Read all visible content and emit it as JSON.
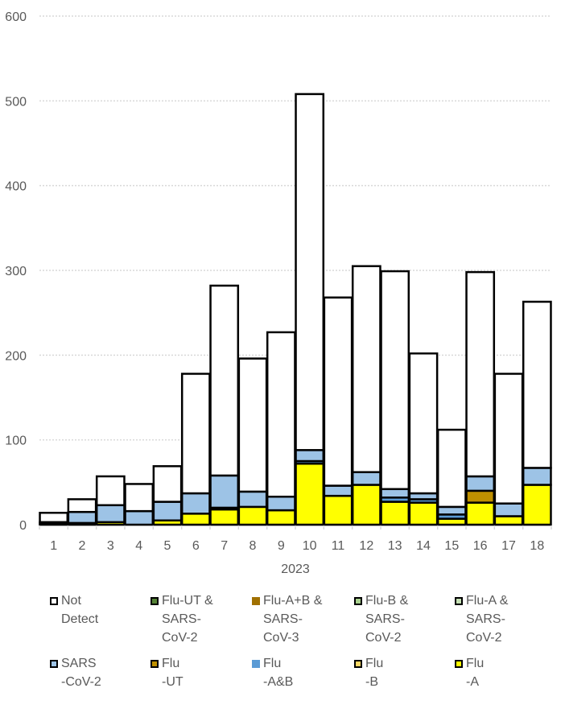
{
  "chart_data": {
    "type": "bar",
    "stacked": true,
    "title": "",
    "xlabel": "2023",
    "ylabel": "",
    "ylim": [
      0,
      600
    ],
    "yticks": [
      0,
      100,
      200,
      300,
      400,
      500,
      600
    ],
    "grid": "horizontal-dotted",
    "legend_position": "bottom",
    "categories": [
      "1",
      "2",
      "3",
      "4",
      "5",
      "6",
      "7",
      "8",
      "9",
      "10",
      "11",
      "12",
      "13",
      "14",
      "15",
      "16",
      "17",
      "18"
    ],
    "series": [
      {
        "name": "Flu-A",
        "label": "Flu\n-A",
        "color": "#FFFF00",
        "values": [
          1,
          2,
          3,
          0,
          5,
          13,
          18,
          21,
          17,
          72,
          34,
          47,
          27,
          26,
          7,
          26,
          10,
          47
        ]
      },
      {
        "name": "Flu-B",
        "label": "Flu\n-B",
        "color": "#FFD966",
        "values": [
          0,
          0,
          0,
          0,
          0,
          0,
          0,
          0,
          0,
          0,
          0,
          0,
          0,
          0,
          0,
          0,
          0,
          0
        ]
      },
      {
        "name": "Flu-A&B",
        "label": "Flu\n-A&B",
        "color": "#5B9BD5",
        "values": [
          0,
          0,
          0,
          0,
          0,
          0,
          0,
          0,
          0,
          3,
          0,
          0,
          5,
          4,
          5,
          0,
          0,
          0
        ]
      },
      {
        "name": "Flu-UT",
        "label": "Flu\n-UT",
        "color": "#BF9000",
        "values": [
          0,
          0,
          0,
          0,
          0,
          0,
          2,
          0,
          0,
          0,
          0,
          0,
          0,
          0,
          0,
          14,
          0,
          0
        ]
      },
      {
        "name": "SARS-CoV-2",
        "label": "SARS\n-CoV-2",
        "color": "#9DC3E6",
        "values": [
          2,
          13,
          20,
          16,
          22,
          24,
          38,
          18,
          16,
          13,
          12,
          15,
          10,
          7,
          9,
          17,
          15,
          20
        ]
      },
      {
        "name": "Flu-A & SARS-CoV-2",
        "label": "Flu-A &\nSARS-\nCoV-2",
        "color": "#C5E0B4",
        "values": [
          0,
          0,
          0,
          0,
          0,
          0,
          0,
          0,
          0,
          0,
          0,
          0,
          0,
          0,
          0,
          0,
          0,
          0
        ]
      },
      {
        "name": "Flu-B & SARS-CoV-2",
        "label": "Flu-B &\nSARS-\nCoV-2",
        "color": "#A9D18E",
        "values": [
          0,
          0,
          0,
          0,
          0,
          0,
          0,
          0,
          0,
          0,
          0,
          0,
          0,
          0,
          0,
          0,
          0,
          0
        ]
      },
      {
        "name": "Flu-A+B & SARS-CoV-3",
        "label": "Flu-A+B &\nSARS-\nCoV-3",
        "color": "#A07000",
        "values": [
          0,
          0,
          0,
          0,
          0,
          0,
          0,
          0,
          0,
          0,
          0,
          0,
          0,
          0,
          0,
          0,
          0,
          0
        ]
      },
      {
        "name": "Flu-UT & SARS-CoV-2",
        "label": "Flu-UT &\nSARS-\nCoV-2",
        "color": "#548235",
        "values": [
          0,
          0,
          0,
          0,
          0,
          0,
          0,
          0,
          0,
          0,
          0,
          0,
          0,
          0,
          0,
          0,
          0,
          0
        ]
      },
      {
        "name": "Not Detect",
        "label": "Not\nDetect",
        "color": "#FFFFFF",
        "values": [
          11,
          15,
          34,
          32,
          42,
          141,
          224,
          157,
          194,
          420,
          222,
          243,
          257,
          165,
          91,
          241,
          153,
          196
        ]
      }
    ],
    "legend_order": [
      "Not Detect",
      "Flu-UT & SARS-CoV-2",
      "Flu-A+B & SARS-CoV-3",
      "Flu-B & SARS-CoV-2",
      "Flu-A & SARS-CoV-2",
      "SARS-CoV-2",
      "Flu-UT",
      "Flu-A&B",
      "Flu-B",
      "Flu-A"
    ]
  }
}
